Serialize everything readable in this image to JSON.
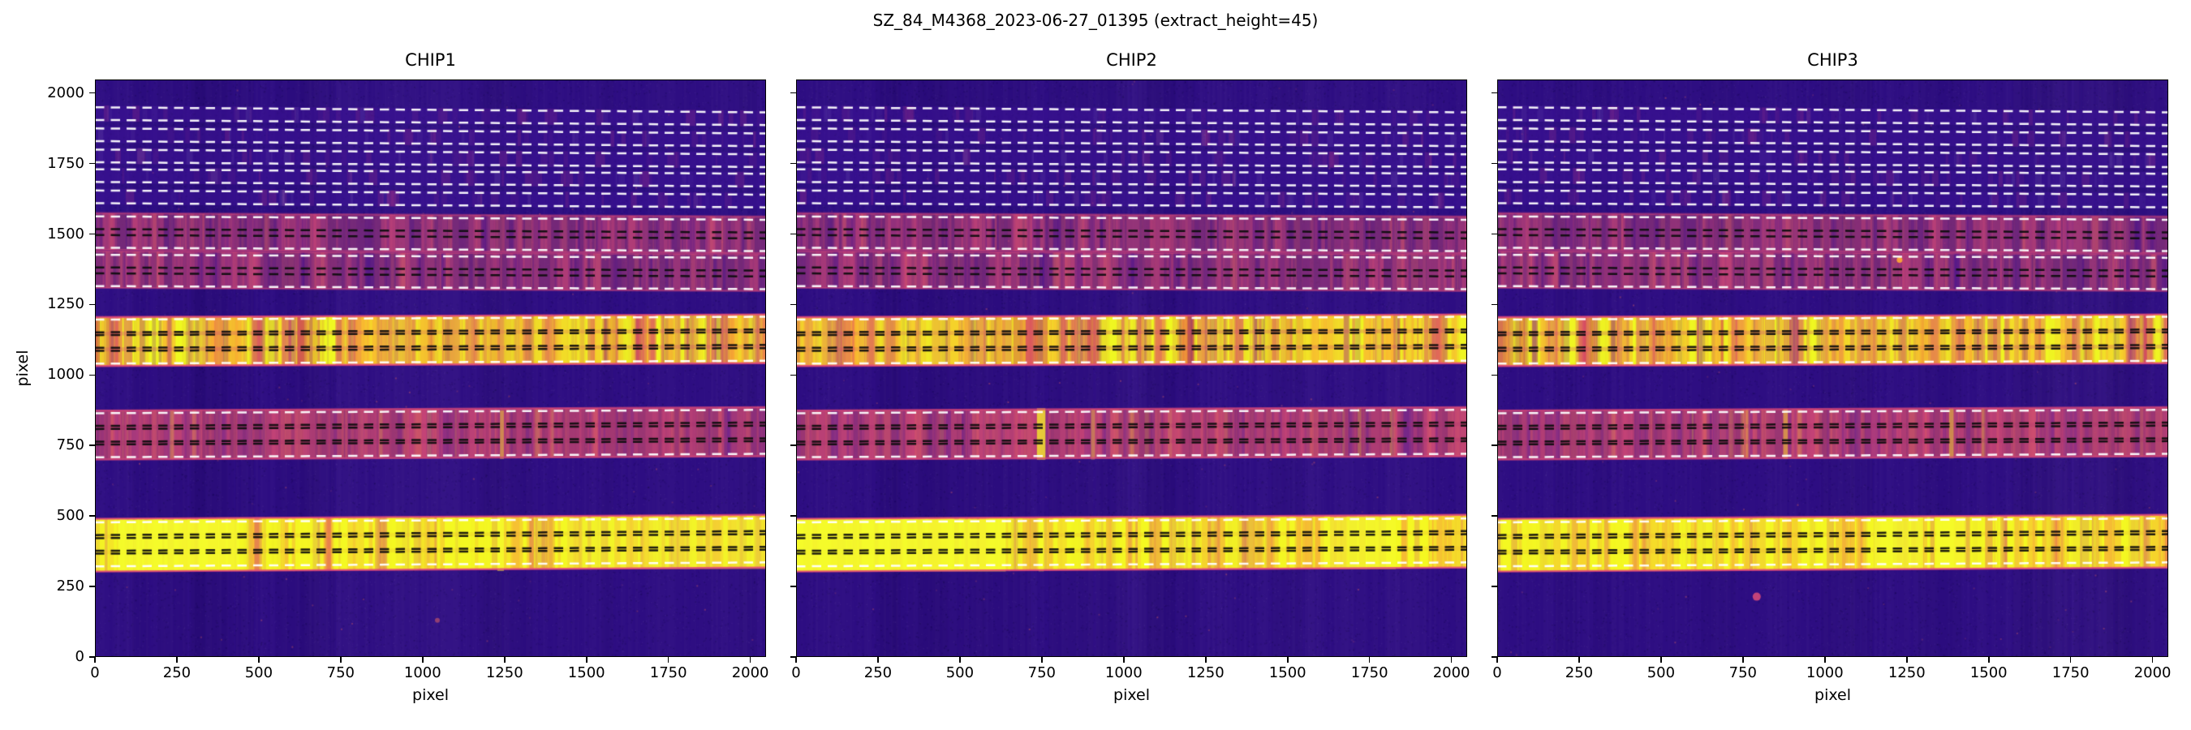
{
  "title": "SZ_84_M4368_2023-06-27_01395  (extract_height=45)",
  "chart_data": {
    "type": "heatmap",
    "colormap": "plasma",
    "xlabel": "pixel",
    "ylabel": "pixel",
    "xlim": [
      0,
      2048
    ],
    "ylim": [
      0,
      2048
    ],
    "xticks": [
      0,
      250,
      500,
      750,
      1000,
      1250,
      1500,
      1750,
      2000
    ],
    "yticks": [
      0,
      250,
      500,
      750,
      1000,
      1250,
      1500,
      1750,
      2000
    ],
    "extract_height": 45,
    "colors": {
      "background": "#2d0d82",
      "text": "#000000",
      "dash_white": "#ffffff",
      "dash_black": "#0c0c0c",
      "order_edge_pink": "#e1457c",
      "bright_yellow": "#f0f921",
      "orange": "#fca636",
      "pink": "#cc4778"
    },
    "band_styles": {
      "faint": {
        "base": "#3d1198",
        "base_alpha": 0.5,
        "streaks": [
          {
            "color": "#b83a82",
            "count": 26,
            "a0": 0.05,
            "a1": 0.22,
            "w0": 2,
            "w1": 12
          },
          {
            "color": "#ffffff",
            "count": 12,
            "a0": 0.02,
            "a1": 0.07,
            "w0": 2,
            "w1": 9
          }
        ]
      },
      "pink": {
        "base": "#a03873",
        "base_alpha": 0.62,
        "streaks": [
          {
            "color": "#cc4778",
            "count": 110,
            "a0": 0.12,
            "a1": 0.4,
            "w0": 2,
            "w1": 18
          },
          {
            "color": "#e16462",
            "count": 36,
            "a0": 0.1,
            "a1": 0.3,
            "w0": 2,
            "w1": 9
          },
          {
            "color": "#45128f",
            "count": 60,
            "a0": 0.1,
            "a1": 0.32,
            "w0": 2,
            "w1": 12
          }
        ],
        "edge": "#d8457a",
        "edge_alpha": 0.5
      },
      "pinkstrong": {
        "base": "#b5406f",
        "base_alpha": 0.8,
        "streaks": [
          {
            "color": "#cc4778",
            "count": 130,
            "a0": 0.15,
            "a1": 0.45,
            "w0": 2,
            "w1": 16
          },
          {
            "color": "#e16462",
            "count": 62,
            "a0": 0.12,
            "a1": 0.36,
            "w0": 2,
            "w1": 10
          },
          {
            "color": "#551a9c",
            "count": 55,
            "a0": 0.1,
            "a1": 0.3,
            "w0": 2,
            "w1": 10
          },
          {
            "color": "#f0f921",
            "count": 9,
            "a0": 0.08,
            "a1": 0.22,
            "w0": 2,
            "w1": 6
          }
        ],
        "lane_color": "#a23168",
        "lane_alpha": 0.25,
        "edge": "#d8457a",
        "edge_alpha": 0.75
      },
      "bright": {
        "base": "#e2713b",
        "base_alpha": 0.9,
        "streaks": [
          {
            "color": "#f0f921",
            "count": 220,
            "a0": 0.2,
            "a1": 0.8,
            "w0": 3,
            "w1": 24
          },
          {
            "color": "#fca636",
            "count": 80,
            "a0": 0.15,
            "a1": 0.5,
            "w0": 3,
            "w1": 18
          },
          {
            "color": "#d6446d",
            "count": 85,
            "a0": 0.15,
            "a1": 0.45,
            "w0": 2,
            "w1": 13
          },
          {
            "color": "#7a2182",
            "count": 38,
            "a0": 0.08,
            "a1": 0.28,
            "w0": 2,
            "w1": 8
          }
        ],
        "lane_color": "#cc4778",
        "lane_alpha": 0.28,
        "edge": "#e1457c",
        "edge_alpha": 0.85
      },
      "yellow": {
        "base": "#eec13c",
        "base_alpha": 0.94,
        "streaks": [
          {
            "color": "#f4f822",
            "count": 250,
            "a0": 0.25,
            "a1": 0.9,
            "w0": 3,
            "w1": 26
          },
          {
            "color": "#f89441",
            "count": 66,
            "a0": 0.15,
            "a1": 0.4,
            "w0": 2,
            "w1": 14
          },
          {
            "color": "#d6446d",
            "count": 42,
            "a0": 0.1,
            "a1": 0.33,
            "w0": 2,
            "w1": 10
          }
        ],
        "lane_color": "#e8a23c",
        "lane_alpha": 0.22,
        "edge": "#e1457c",
        "edge_alpha": 0.85
      }
    },
    "bands": [
      {
        "name": "order-top-1",
        "style": "faint",
        "y0": 1899,
        "y1": 1956,
        "tilt": -18,
        "traces": [
          1927
        ],
        "line_colors": [
          "w",
          "w"
        ]
      },
      {
        "name": "order-top-2",
        "style": "faint",
        "y0": 1824,
        "y1": 1881,
        "tilt": -18,
        "traces": [
          1852
        ],
        "line_colors": [
          "w",
          "w"
        ]
      },
      {
        "name": "order-top-3",
        "style": "faint",
        "y0": 1749,
        "y1": 1806,
        "tilt": -17,
        "traces": [
          1777
        ],
        "line_colors": [
          "w",
          "w"
        ]
      },
      {
        "name": "order-top-4",
        "style": "faint",
        "y0": 1679,
        "y1": 1736,
        "tilt": -16,
        "traces": [
          1707
        ],
        "line_colors": [
          "w",
          "w"
        ]
      },
      {
        "name": "order-top-5",
        "style": "faint",
        "y0": 1604,
        "y1": 1661,
        "tilt": -15,
        "traces": [
          1632
        ],
        "line_colors": [
          "w",
          "w"
        ]
      },
      {
        "name": "order-pink-a",
        "style": "pink",
        "y0": 1444,
        "y1": 1574,
        "tilt": -12,
        "traces": [
          1540,
          1474
        ],
        "line_colors": [
          "w",
          "k",
          "k",
          "w"
        ]
      },
      {
        "name": "order-pink-b",
        "style": "pink",
        "y0": 1309,
        "y1": 1439,
        "tilt": -11,
        "traces": [
          1404,
          1338
        ],
        "line_colors": [
          "w",
          "k",
          "k",
          "w"
        ]
      },
      {
        "name": "order-bright",
        "style": "bright",
        "y0": 1032,
        "y1": 1205,
        "tilt": 10,
        "traces": [
          1174,
          1119,
          1063
        ],
        "line_colors": [
          "w",
          "k",
          "k",
          "k",
          "k",
          "w"
        ]
      },
      {
        "name": "order-pink-c",
        "style": "pinkstrong",
        "y0": 700,
        "y1": 874,
        "tilt": 12,
        "traces": [
          842,
          786,
          731
        ],
        "line_colors": [
          "w",
          "k",
          "k",
          "k",
          "k",
          "w"
        ]
      },
      {
        "name": "order-yellow",
        "style": "yellow",
        "y0": 303,
        "y1": 490,
        "tilt": 14,
        "traces": [
          455,
          399,
          344
        ],
        "line_colors": [
          "w",
          "k",
          "k",
          "k",
          "k",
          "w"
        ]
      }
    ],
    "panels": [
      {
        "title": "CHIP1",
        "seed": 101,
        "features": [
          {
            "type": "xpatch",
            "x0": 70,
            "x1": 440,
            "y0": 306,
            "y1": 486,
            "color": "#f5fb2b",
            "alpha": 0.85
          },
          {
            "type": "xpatch",
            "x0": 1440,
            "x1": 2048,
            "y0": 312,
            "y1": 494,
            "color": "#f2ef2e",
            "alpha": 0.45
          },
          {
            "type": "vstreak",
            "x": 1238,
            "w": 20,
            "y0": 306,
            "y1": 500,
            "color": "#f5fb2b",
            "alpha": 0.8
          },
          {
            "type": "vstreak",
            "x": 1242,
            "w": 12,
            "y0": 702,
            "y1": 874,
            "color": "#f0cf31",
            "alpha": 0.5
          },
          {
            "type": "xpatch",
            "x0": 850,
            "x1": 1500,
            "y0": 1036,
            "y1": 1206,
            "color": "#f6c62f",
            "alpha": 0.3
          },
          {
            "type": "dot",
            "x": 1045,
            "y": 130,
            "r": 3,
            "color": "#e16462",
            "alpha": 0.55
          }
        ]
      },
      {
        "title": "CHIP2",
        "seed": 202,
        "features": [
          {
            "type": "xpatch",
            "x0": 0,
            "x1": 640,
            "y0": 304,
            "y1": 488,
            "color": "#f5fb2b",
            "alpha": 0.85
          },
          {
            "type": "xpatch",
            "x0": 1600,
            "x1": 1830,
            "y0": 312,
            "y1": 495,
            "color": "#f5fb2b",
            "alpha": 0.7
          },
          {
            "type": "vstreak",
            "x": 748,
            "w": 26,
            "y0": 700,
            "y1": 882,
            "color": "#f5ec2b",
            "alpha": 0.8
          },
          {
            "type": "vstreak",
            "x": 906,
            "w": 12,
            "y0": 700,
            "y1": 878,
            "color": "#eec43a",
            "alpha": 0.45
          },
          {
            "type": "vstreak",
            "x": 748,
            "w": 16,
            "y0": 304,
            "y1": 494,
            "color": "#f5fb2b",
            "alpha": 0.6
          },
          {
            "type": "xpatch",
            "x0": 180,
            "x1": 700,
            "y0": 1034,
            "y1": 1204,
            "color": "#f6c62f",
            "alpha": 0.28
          },
          {
            "type": "xpatch",
            "x0": 0,
            "x1": 120,
            "y0": 1034,
            "y1": 1204,
            "color": "#f4dc2e",
            "alpha": 0.4
          }
        ]
      },
      {
        "title": "CHIP3",
        "seed": 303,
        "features": [
          {
            "type": "xpatch",
            "x0": 1150,
            "x1": 1300,
            "y0": 312,
            "y1": 496,
            "color": "#f5fb2b",
            "alpha": 0.8
          },
          {
            "type": "xpatch",
            "x0": 1340,
            "x1": 1430,
            "y0": 314,
            "y1": 497,
            "color": "#f5fb2b",
            "alpha": 0.75
          },
          {
            "type": "vstreak",
            "x": 880,
            "w": 14,
            "y0": 702,
            "y1": 880,
            "color": "#f0cf31",
            "alpha": 0.55
          },
          {
            "type": "vstreak",
            "x": 1386,
            "w": 14,
            "y0": 704,
            "y1": 882,
            "color": "#f0cf31",
            "alpha": 0.55
          },
          {
            "type": "vstreak",
            "x": 460,
            "w": 10,
            "y0": 306,
            "y1": 492,
            "color": "#f2e93a",
            "alpha": 0.45
          },
          {
            "type": "xpatch",
            "x0": 1000,
            "x1": 1420,
            "y0": 1040,
            "y1": 1210,
            "color": "#f6c62f",
            "alpha": 0.3
          },
          {
            "type": "dot",
            "x": 792,
            "y": 214,
            "r": 5,
            "color": "#cc4778",
            "alpha": 0.95
          },
          {
            "type": "dot",
            "x": 1228,
            "y": 1408,
            "r": 3.5,
            "color": "#fca636",
            "alpha": 0.95
          }
        ]
      }
    ]
  }
}
